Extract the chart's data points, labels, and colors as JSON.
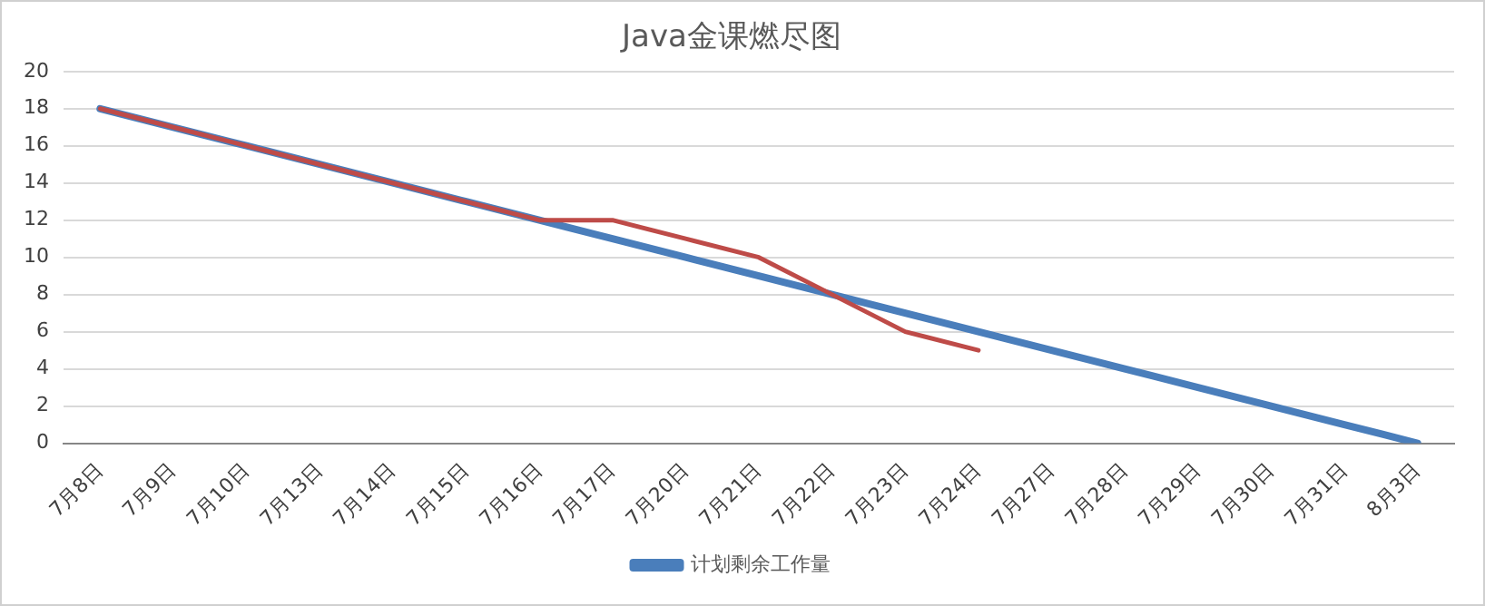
{
  "chart_data": {
    "type": "line",
    "title": "Java金课燃尽图",
    "categories": [
      "7月8日",
      "7月9日",
      "7月10日",
      "7月13日",
      "7月14日",
      "7月15日",
      "7月16日",
      "7月17日",
      "7月20日",
      "7月21日",
      "7月22日",
      "7月23日",
      "7月24日",
      "7月27日",
      "7月28日",
      "7月29日",
      "7月30日",
      "7月31日",
      "8月3日"
    ],
    "series": [
      {
        "name": "计划剩余工作量",
        "color": "#4a7ebb",
        "values": [
          18,
          17,
          16,
          15,
          14,
          13,
          12,
          11,
          10,
          9,
          8,
          7,
          6,
          5,
          4,
          3,
          2,
          1,
          0
        ]
      },
      {
        "color": "#be4b48",
        "values": [
          18,
          17,
          16,
          15,
          14,
          13,
          12,
          12,
          11,
          10,
          8,
          6,
          5,
          null,
          null,
          null,
          null,
          null,
          null
        ]
      }
    ],
    "ylim": [
      0,
      20
    ],
    "yticks": [
      0,
      2,
      4,
      6,
      8,
      10,
      12,
      14,
      16,
      18,
      20
    ],
    "grid": "y",
    "legend": "bottom",
    "marker": "none"
  }
}
